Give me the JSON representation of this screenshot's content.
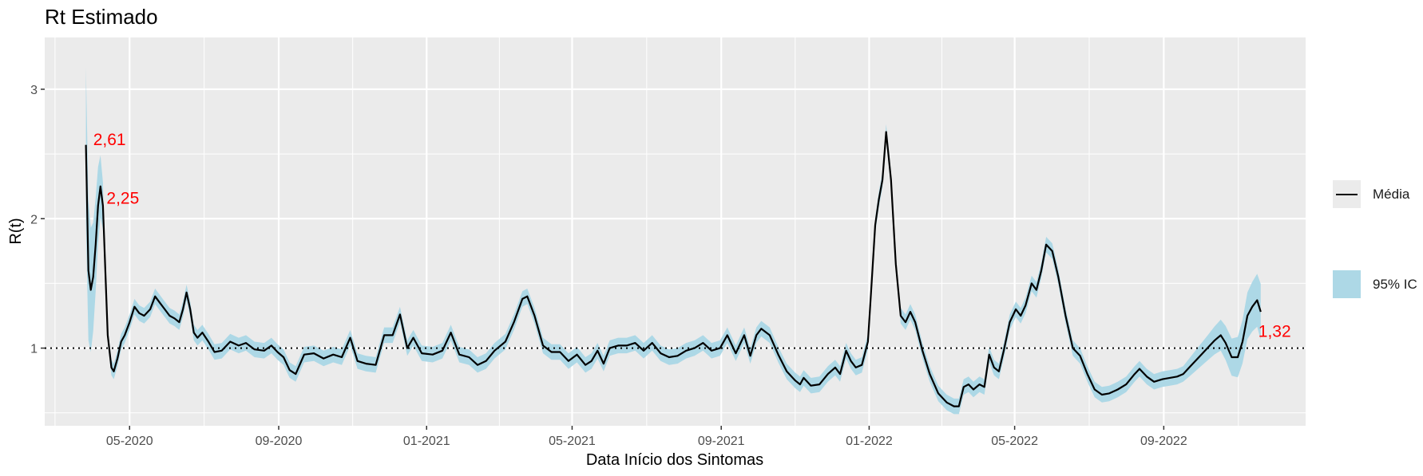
{
  "chart_data": {
    "type": "line",
    "title": "Rt Estimado",
    "xlabel": "Data Início dos Sintomas",
    "ylabel": "R(t)",
    "x_ticks": [
      "05-2020",
      "09-2020",
      "01-2021",
      "05-2021",
      "09-2021",
      "01-2022",
      "05-2022",
      "09-2022"
    ],
    "x_tick_dates": [
      "2020-05-01",
      "2020-09-01",
      "2021-01-01",
      "2021-05-01",
      "2021-09-01",
      "2022-01-01",
      "2022-05-01",
      "2022-09-01"
    ],
    "y_ticks": [
      "1",
      "2",
      "3"
    ],
    "y_tick_values": [
      1,
      2,
      3
    ],
    "xlim": [
      "2020-02-21",
      "2022-12-27"
    ],
    "ylim": [
      0.4,
      3.4
    ],
    "grid": true,
    "reference_line": 1,
    "legend_position": "right",
    "legend": [
      "Média",
      "95% IC"
    ],
    "colors": {
      "line": "#000000",
      "band": "#add8e6",
      "annotation": "#ff0000",
      "panel": "#ebebeb",
      "grid": "#ffffff"
    },
    "annotations": [
      {
        "text": "2,61",
        "x": "2020-04-01",
        "y": 2.61
      },
      {
        "text": "2,25",
        "x": "2020-04-12",
        "y": 2.16
      },
      {
        "text": "1,32",
        "x": "2022-11-18",
        "y": 1.13
      }
    ],
    "series": [
      {
        "name": "Média",
        "band_halfwidth": 0.06,
        "points": [
          [
            "2020-03-26",
            2.57
          ],
          [
            "2020-03-28",
            1.6
          ],
          [
            "2020-03-30",
            1.45
          ],
          [
            "2020-04-01",
            1.55
          ],
          [
            "2020-04-03",
            1.8
          ],
          [
            "2020-04-05",
            2.1
          ],
          [
            "2020-04-07",
            2.25
          ],
          [
            "2020-04-09",
            2.1
          ],
          [
            "2020-04-11",
            1.6
          ],
          [
            "2020-04-13",
            1.1
          ],
          [
            "2020-04-16",
            0.85
          ],
          [
            "2020-04-18",
            0.82
          ],
          [
            "2020-04-21",
            0.92
          ],
          [
            "2020-04-24",
            1.05
          ],
          [
            "2020-04-27",
            1.1
          ],
          [
            "2020-05-01",
            1.2
          ],
          [
            "2020-05-05",
            1.32
          ],
          [
            "2020-05-09",
            1.27
          ],
          [
            "2020-05-13",
            1.25
          ],
          [
            "2020-05-18",
            1.3
          ],
          [
            "2020-05-22",
            1.4
          ],
          [
            "2020-05-26",
            1.35
          ],
          [
            "2020-05-30",
            1.3
          ],
          [
            "2020-06-03",
            1.25
          ],
          [
            "2020-06-07",
            1.23
          ],
          [
            "2020-06-11",
            1.2
          ],
          [
            "2020-06-14",
            1.3
          ],
          [
            "2020-06-17",
            1.43
          ],
          [
            "2020-06-20",
            1.3
          ],
          [
            "2020-06-23",
            1.12
          ],
          [
            "2020-06-26",
            1.08
          ],
          [
            "2020-06-30",
            1.12
          ],
          [
            "2020-07-05",
            1.05
          ],
          [
            "2020-07-10",
            0.97
          ],
          [
            "2020-07-16",
            0.98
          ],
          [
            "2020-07-23",
            1.05
          ],
          [
            "2020-07-30",
            1.02
          ],
          [
            "2020-08-05",
            1.04
          ],
          [
            "2020-08-12",
            0.99
          ],
          [
            "2020-08-20",
            0.98
          ],
          [
            "2020-08-26",
            1.02
          ],
          [
            "2020-08-31",
            0.97
          ],
          [
            "2020-09-05",
            0.93
          ],
          [
            "2020-09-10",
            0.83
          ],
          [
            "2020-09-15",
            0.8
          ],
          [
            "2020-09-22",
            0.95
          ],
          [
            "2020-09-30",
            0.96
          ],
          [
            "2020-10-08",
            0.92
          ],
          [
            "2020-10-16",
            0.95
          ],
          [
            "2020-10-23",
            0.93
          ],
          [
            "2020-10-30",
            1.08
          ],
          [
            "2020-11-05",
            0.9
          ],
          [
            "2020-11-12",
            0.88
          ],
          [
            "2020-11-20",
            0.87
          ],
          [
            "2020-11-27",
            1.1
          ],
          [
            "2020-12-04",
            1.1
          ],
          [
            "2020-12-10",
            1.26
          ],
          [
            "2020-12-16",
            1.0
          ],
          [
            "2020-12-21",
            1.08
          ],
          [
            "2020-12-28",
            0.96
          ],
          [
            "2021-01-06",
            0.95
          ],
          [
            "2021-01-14",
            0.98
          ],
          [
            "2021-01-21",
            1.12
          ],
          [
            "2021-01-28",
            0.95
          ],
          [
            "2021-02-05",
            0.93
          ],
          [
            "2021-02-12",
            0.87
          ],
          [
            "2021-02-19",
            0.9
          ],
          [
            "2021-02-26",
            0.98
          ],
          [
            "2021-03-07",
            1.05
          ],
          [
            "2021-03-14",
            1.2
          ],
          [
            "2021-03-21",
            1.38
          ],
          [
            "2021-03-25",
            1.4
          ],
          [
            "2021-03-31",
            1.25
          ],
          [
            "2021-04-07",
            1.02
          ],
          [
            "2021-04-14",
            0.97
          ],
          [
            "2021-04-21",
            0.97
          ],
          [
            "2021-04-28",
            0.9
          ],
          [
            "2021-05-05",
            0.95
          ],
          [
            "2021-05-12",
            0.87
          ],
          [
            "2021-05-17",
            0.9
          ],
          [
            "2021-05-22",
            0.98
          ],
          [
            "2021-05-27",
            0.88
          ],
          [
            "2021-06-01",
            1.0
          ],
          [
            "2021-06-08",
            1.02
          ],
          [
            "2021-06-15",
            1.02
          ],
          [
            "2021-06-22",
            1.04
          ],
          [
            "2021-06-29",
            0.98
          ],
          [
            "2021-07-06",
            1.04
          ],
          [
            "2021-07-13",
            0.96
          ],
          [
            "2021-07-20",
            0.93
          ],
          [
            "2021-07-27",
            0.94
          ],
          [
            "2021-08-03",
            0.98
          ],
          [
            "2021-08-10",
            1.0
          ],
          [
            "2021-08-17",
            1.04
          ],
          [
            "2021-08-24",
            0.98
          ],
          [
            "2021-08-31",
            1.0
          ],
          [
            "2021-09-06",
            1.1
          ],
          [
            "2021-09-13",
            0.96
          ],
          [
            "2021-09-20",
            1.1
          ],
          [
            "2021-09-25",
            0.94
          ],
          [
            "2021-09-30",
            1.1
          ],
          [
            "2021-10-04",
            1.15
          ],
          [
            "2021-10-11",
            1.1
          ],
          [
            "2021-10-18",
            0.95
          ],
          [
            "2021-10-25",
            0.82
          ],
          [
            "2021-11-01",
            0.75
          ],
          [
            "2021-11-05",
            0.72
          ],
          [
            "2021-11-08",
            0.77
          ],
          [
            "2021-11-14",
            0.71
          ],
          [
            "2021-11-21",
            0.72
          ],
          [
            "2021-11-28",
            0.8
          ],
          [
            "2021-12-04",
            0.85
          ],
          [
            "2021-12-08",
            0.8
          ],
          [
            "2021-12-13",
            0.98
          ],
          [
            "2021-12-17",
            0.9
          ],
          [
            "2021-12-21",
            0.85
          ],
          [
            "2021-12-26",
            0.87
          ],
          [
            "2021-12-31",
            1.05
          ],
          [
            "2022-01-03",
            1.5
          ],
          [
            "2022-01-06",
            1.95
          ],
          [
            "2022-01-09",
            2.15
          ],
          [
            "2022-01-12",
            2.3
          ],
          [
            "2022-01-15",
            2.67
          ],
          [
            "2022-01-19",
            2.3
          ],
          [
            "2022-01-23",
            1.65
          ],
          [
            "2022-01-27",
            1.25
          ],
          [
            "2022-01-31",
            1.2
          ],
          [
            "2022-02-04",
            1.28
          ],
          [
            "2022-02-08",
            1.2
          ],
          [
            "2022-02-14",
            0.98
          ],
          [
            "2022-02-20",
            0.8
          ],
          [
            "2022-02-27",
            0.65
          ],
          [
            "2022-03-06",
            0.58
          ],
          [
            "2022-03-12",
            0.55
          ],
          [
            "2022-03-16",
            0.55
          ],
          [
            "2022-03-20",
            0.7
          ],
          [
            "2022-03-24",
            0.72
          ],
          [
            "2022-03-28",
            0.68
          ],
          [
            "2022-04-02",
            0.72
          ],
          [
            "2022-04-06",
            0.7
          ],
          [
            "2022-04-10",
            0.95
          ],
          [
            "2022-04-14",
            0.85
          ],
          [
            "2022-04-18",
            0.82
          ],
          [
            "2022-04-22",
            0.98
          ],
          [
            "2022-04-27",
            1.2
          ],
          [
            "2022-05-02",
            1.3
          ],
          [
            "2022-05-06",
            1.25
          ],
          [
            "2022-05-10",
            1.33
          ],
          [
            "2022-05-15",
            1.5
          ],
          [
            "2022-05-19",
            1.45
          ],
          [
            "2022-05-23",
            1.6
          ],
          [
            "2022-05-27",
            1.8
          ],
          [
            "2022-06-01",
            1.75
          ],
          [
            "2022-06-06",
            1.55
          ],
          [
            "2022-06-12",
            1.25
          ],
          [
            "2022-06-18",
            1.0
          ],
          [
            "2022-06-24",
            0.94
          ],
          [
            "2022-06-30",
            0.8
          ],
          [
            "2022-07-06",
            0.68
          ],
          [
            "2022-07-12",
            0.64
          ],
          [
            "2022-07-18",
            0.65
          ],
          [
            "2022-07-25",
            0.68
          ],
          [
            "2022-08-01",
            0.72
          ],
          [
            "2022-08-08",
            0.8
          ],
          [
            "2022-08-12",
            0.84
          ],
          [
            "2022-08-18",
            0.78
          ],
          [
            "2022-08-24",
            0.74
          ],
          [
            "2022-08-31",
            0.76
          ],
          [
            "2022-09-06",
            0.77
          ],
          [
            "2022-09-12",
            0.78
          ],
          [
            "2022-09-17",
            0.8
          ],
          [
            "2022-09-23",
            0.86
          ],
          [
            "2022-09-30",
            0.93
          ],
          [
            "2022-10-07",
            1.0
          ],
          [
            "2022-10-13",
            1.06
          ],
          [
            "2022-10-18",
            1.1
          ],
          [
            "2022-10-22",
            1.04
          ],
          [
            "2022-10-27",
            0.93
          ],
          [
            "2022-11-01",
            0.93
          ],
          [
            "2022-11-05",
            1.05
          ],
          [
            "2022-11-09",
            1.25
          ],
          [
            "2022-11-13",
            1.32
          ],
          [
            "2022-11-17",
            1.37
          ],
          [
            "2022-11-20",
            1.28
          ]
        ]
      }
    ]
  }
}
